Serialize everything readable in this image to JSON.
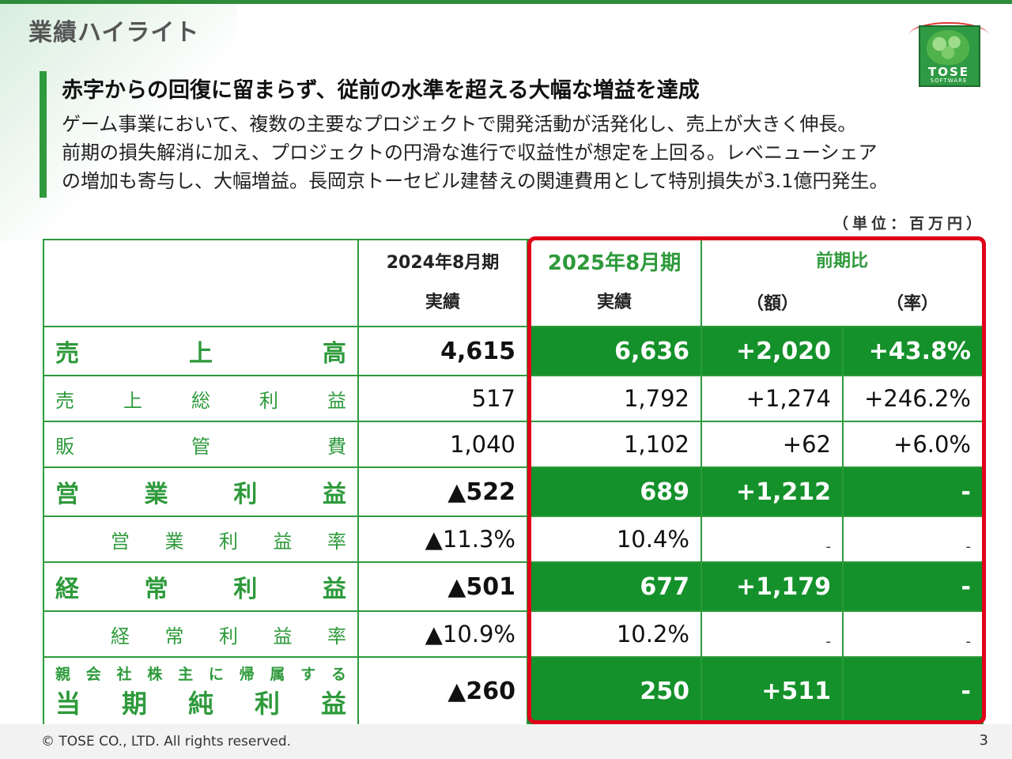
{
  "header": {
    "section_title": "業績ハイライト",
    "logo_text": "TOSE",
    "logo_sub": "SOFTWARE"
  },
  "summary": {
    "headline": "赤字からの回復に留まらず、従前の水準を超える大幅な増益を達成",
    "lines": [
      "ゲーム事業において、複数の主要なプロジェクトで開発活動が活発化し、売上が大きく伸長。",
      "前期の損失解消に加え、プロジェクトの円滑な進行で収益性が想定を上回る。レベニューシェア",
      "の増加も寄与し、大幅増益。長岡京トーセビル建替えの関連費用として特別損失が3.1億円発生。"
    ]
  },
  "unit_label": "（単位：百万円）",
  "table": {
    "header": {
      "prev_period": "2024年8月期",
      "prev_sub": "実績",
      "cur_period": "2025年8月期",
      "cur_sub": "実績",
      "yoy": "前期比",
      "amount": "（額）",
      "rate": "（率）"
    },
    "rows": [
      {
        "label_chars": [
          "売",
          "上",
          "高"
        ],
        "prev": "4,615",
        "cur": "6,636",
        "diff": "+2,020",
        "rate": "+43.8%"
      },
      {
        "label_chars": [
          "売",
          "上",
          "総",
          "利",
          "益"
        ],
        "prev": "517",
        "cur": "1,792",
        "diff": "+1,274",
        "rate": "+246.2%"
      },
      {
        "label_chars": [
          "販",
          "管",
          "費"
        ],
        "prev": "1,040",
        "cur": "1,102",
        "diff": "+62",
        "rate": "+6.0%"
      },
      {
        "label_chars": [
          "営",
          "業",
          "利",
          "益"
        ],
        "prev": "▲522",
        "cur": "689",
        "diff": "+1,212",
        "rate": "-"
      },
      {
        "label_chars": [
          "営",
          "業",
          "利",
          "益",
          "率"
        ],
        "prev": "▲11.3%",
        "cur": "10.4%",
        "diff": "-",
        "rate": "-"
      },
      {
        "label_chars": [
          "経",
          "常",
          "利",
          "益"
        ],
        "prev": "▲501",
        "cur": "677",
        "diff": "+1,179",
        "rate": "-"
      },
      {
        "label_chars": [
          "経",
          "常",
          "利",
          "益",
          "率"
        ],
        "prev": "▲10.9%",
        "cur": "10.2%",
        "diff": "-",
        "rate": "-"
      },
      {
        "label_small_chars": [
          "親",
          "会",
          "社",
          "株",
          "主",
          "に",
          "帰",
          "属",
          "す",
          "る"
        ],
        "label_chars": [
          "当",
          "期",
          "純",
          "利",
          "益"
        ],
        "prev": "▲260",
        "cur": "250",
        "diff": "+511",
        "rate": "-"
      }
    ]
  },
  "footer": {
    "copyright": "© TOSE CO., LTD. All rights reserved.",
    "page": "3"
  }
}
